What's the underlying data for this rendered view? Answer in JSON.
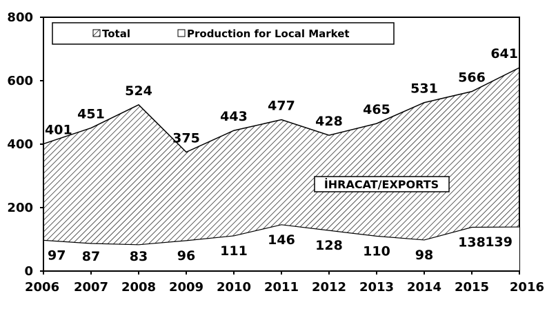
{
  "chart_data": {
    "type": "area",
    "x": [
      "2006",
      "2007",
      "2008",
      "2009",
      "2010",
      "2011",
      "2012",
      "2013",
      "2014",
      "2015",
      "2016"
    ],
    "series": [
      {
        "name": "Total",
        "values": [
          401,
          451,
          524,
          375,
          443,
          477,
          428,
          465,
          531,
          566,
          641
        ],
        "fill": "hatched"
      },
      {
        "name": "Production for Local Market",
        "values": [
          97,
          87,
          83,
          96,
          111,
          146,
          128,
          110,
          98,
          138,
          139
        ],
        "fill": "#ffffff"
      }
    ],
    "y_ticks": [
      "0",
      "200",
      "400",
      "600",
      "800"
    ],
    "ylim": [
      0,
      800
    ],
    "annotation": "İHRACAT/EXPORTS",
    "legend_position": "top",
    "grid": false,
    "title": "",
    "xlabel": "",
    "ylabel": ""
  }
}
